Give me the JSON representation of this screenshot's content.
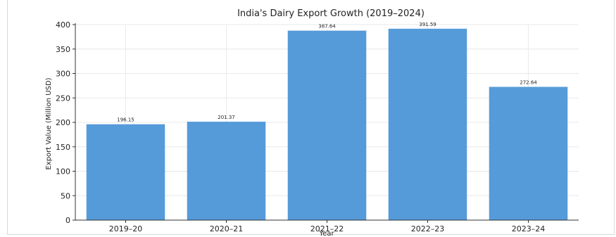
{
  "chart_data": {
    "type": "bar",
    "title": "India's Dairy Export Growth (2019–2024)",
    "xlabel": "Year",
    "ylabel": "Export Value (Million USD)",
    "categories": [
      "2019–20",
      "2020–21",
      "2021–22",
      "2022–23",
      "2023–24"
    ],
    "values": [
      196.15,
      201.37,
      387.64,
      391.59,
      272.64
    ],
    "value_labels": [
      "196.15",
      "201.37",
      "387.64",
      "391.59",
      "272.64"
    ],
    "ylim": [
      0,
      400
    ],
    "yticks": [
      0,
      50,
      100,
      150,
      200,
      250,
      300,
      350,
      400
    ],
    "grid": true,
    "bar_color": "#559bd9"
  }
}
